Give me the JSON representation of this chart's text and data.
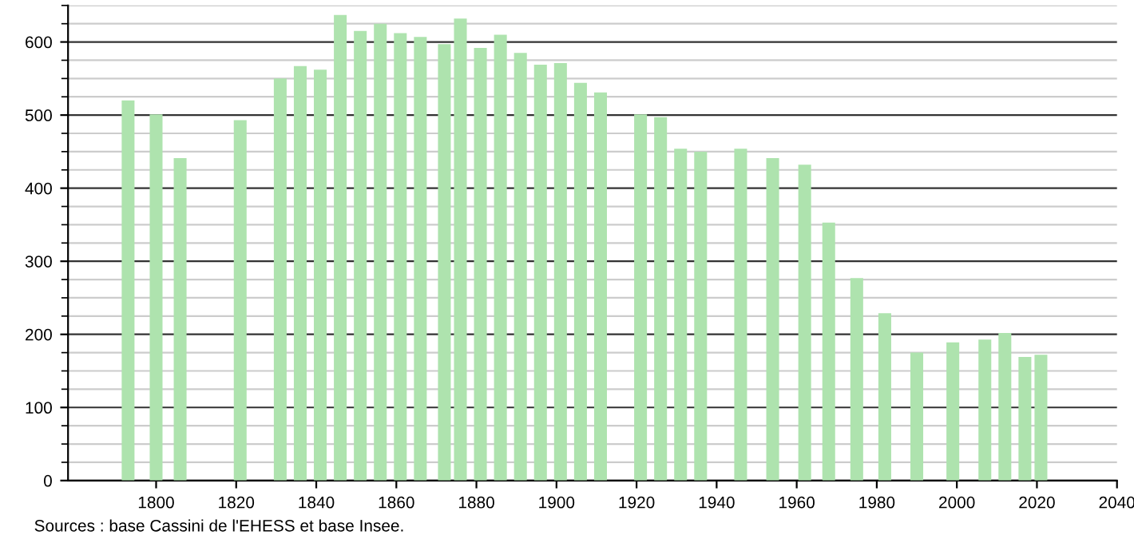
{
  "chart_data": {
    "type": "bar",
    "color": "#aee3ae",
    "x": [
      1793,
      1800,
      1806,
      1821,
      1831,
      1836,
      1841,
      1846,
      1851,
      1856,
      1861,
      1866,
      1872,
      1876,
      1881,
      1886,
      1891,
      1896,
      1901,
      1906,
      1911,
      1921,
      1926,
      1931,
      1936,
      1946,
      1954,
      1962,
      1968,
      1975,
      1982,
      1990,
      1999,
      2006,
      2007,
      2012,
      2017,
      2021
    ],
    "values": [
      520,
      501,
      441,
      493,
      550,
      567,
      562,
      637,
      615,
      625,
      612,
      607,
      597,
      632,
      592,
      610,
      585,
      569,
      571,
      544,
      531,
      501,
      497,
      454,
      450,
      454,
      441,
      432,
      353,
      277,
      229,
      175,
      189,
      null,
      193,
      202,
      169,
      172
    ],
    "xlim": [
      1778,
      2040
    ],
    "xticks": [
      1800,
      1820,
      1840,
      1860,
      1880,
      1900,
      1920,
      1940,
      1960,
      1980,
      2000,
      2020,
      2040
    ],
    "ylim": [
      0,
      650
    ],
    "yticks": [
      0,
      100,
      200,
      300,
      400,
      500,
      600
    ],
    "grid": "y",
    "annotations": [
      "Sources : base Cassini de l'EHESS et base Insee."
    ]
  }
}
